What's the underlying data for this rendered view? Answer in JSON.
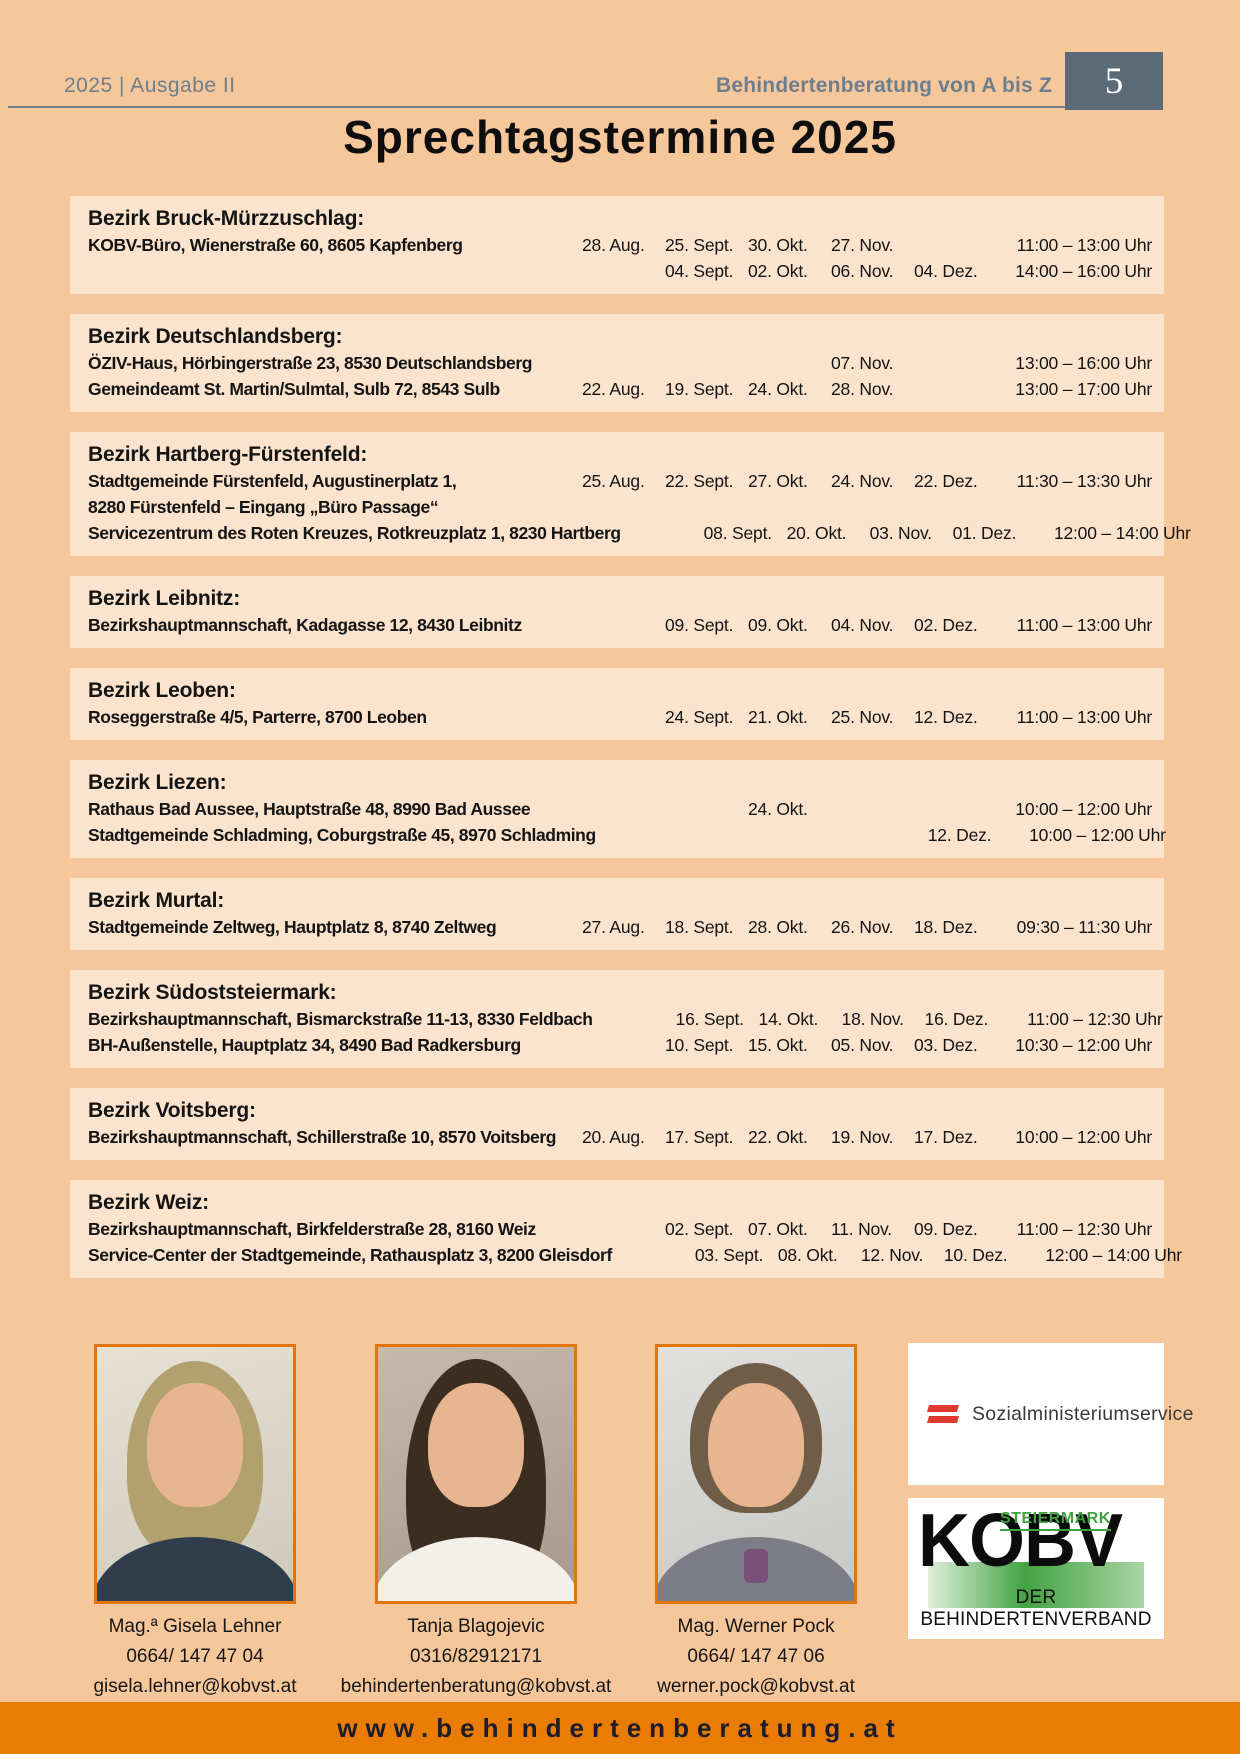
{
  "page": {
    "issue": "2025 | Ausgabe II",
    "brand": "Behindertenberatung von A bis Z",
    "page_number": "5",
    "title": "Sprechtagstermine 2025"
  },
  "colors": {
    "page_bg": "#f7c79c",
    "section_bg": "#fbe3cd",
    "header_slate": "#6d7e8c",
    "pagenum_box": "#5a6a76",
    "accent_orange": "#e97c04",
    "photo_border": "#e0760b",
    "kobv_green": "#3fa23f",
    "flag_red": "#dd3b2f"
  },
  "sections": [
    {
      "title": "Bezirk Bruck-Mürzzuschlag:",
      "rows": [
        {
          "location": "KOBV-Büro, Wienerstraße 60, 8605 Kapfenberg",
          "dates": [
            "28. Aug.",
            "25. Sept.",
            "30. Okt.",
            "27. Nov.",
            ""
          ],
          "time": "11:00 – 13:00 Uhr"
        },
        {
          "location": "",
          "dates": [
            "",
            "04. Sept.",
            "02. Okt.",
            "06. Nov.",
            "04. Dez."
          ],
          "time": "14:00 – 16:00 Uhr"
        }
      ]
    },
    {
      "title": "Bezirk Deutschlandsberg:",
      "rows": [
        {
          "location": "ÖZIV-Haus, Hörbingerstraße 23, 8530 Deutschlandsberg",
          "dates": [
            "",
            "",
            "",
            "07. Nov.",
            ""
          ],
          "time": "13:00 – 16:00 Uhr"
        },
        {
          "location": "Gemeindeamt St. Martin/Sulmtal, Sulb 72, 8543 Sulb",
          "dates": [
            "22. Aug.",
            "19. Sept.",
            "24. Okt.",
            "28. Nov.",
            ""
          ],
          "time": "13:00 – 17:00 Uhr"
        }
      ]
    },
    {
      "title": "Bezirk Hartberg-Fürstenfeld:",
      "rows": [
        {
          "location": "Stadtgemeinde Fürstenfeld, Augustinerplatz 1,",
          "dates": [
            "25. Aug.",
            "22. Sept.",
            "27. Okt.",
            "24. Nov.",
            "22. Dez."
          ],
          "time": "11:30 – 13:30 Uhr"
        },
        {
          "location": "8280 Fürstenfeld – Eingang „Büro Passage“",
          "dates": [
            "",
            "",
            "",
            "",
            ""
          ],
          "time": ""
        },
        {
          "location": "Servicezentrum des Roten Kreuzes, Rotkreuzplatz 1, 8230 Hartberg",
          "dates": [
            "",
            "08. Sept.",
            "20. Okt.",
            "03. Nov.",
            "01. Dez."
          ],
          "time": "12:00 – 14:00 Uhr"
        }
      ]
    },
    {
      "title": "Bezirk Leibnitz:",
      "rows": [
        {
          "location": "Bezirkshauptmannschaft, Kadagasse 12, 8430 Leibnitz",
          "dates": [
            "",
            "09. Sept.",
            "09. Okt.",
            "04. Nov.",
            "02. Dez."
          ],
          "time": "11:00 – 13:00 Uhr"
        }
      ]
    },
    {
      "title": "Bezirk Leoben:",
      "rows": [
        {
          "location": "Roseggerstraße 4/5, Parterre, 8700 Leoben",
          "dates": [
            "",
            "24. Sept.",
            "21. Okt.",
            "25. Nov.",
            "12. Dez."
          ],
          "time": "11:00 – 13:00 Uhr"
        }
      ]
    },
    {
      "title": "Bezirk Liezen:",
      "rows": [
        {
          "location": "Rathaus Bad Aussee, Hauptstraße 48, 8990 Bad Aussee",
          "dates": [
            "",
            "",
            "24. Okt.",
            "",
            ""
          ],
          "time": "10:00 – 12:00 Uhr"
        },
        {
          "location": "Stadtgemeinde Schladming, Coburgstraße 45, 8970 Schladming",
          "dates": [
            "",
            "",
            "",
            "",
            "12. Dez."
          ],
          "time": "10:00 – 12:00 Uhr"
        }
      ]
    },
    {
      "title": "Bezirk Murtal:",
      "rows": [
        {
          "location": "Stadtgemeinde Zeltweg, Hauptplatz 8, 8740 Zeltweg",
          "dates": [
            "27. Aug.",
            "18. Sept.",
            "28. Okt.",
            "26. Nov.",
            "18. Dez."
          ],
          "time": "09:30 – 11:30 Uhr"
        }
      ]
    },
    {
      "title": "Bezirk Südoststeiermark:",
      "rows": [
        {
          "location": "Bezirkshauptmannschaft, Bismarckstraße 11-13, 8330 Feldbach",
          "dates": [
            "",
            "16. Sept.",
            "14. Okt.",
            "18. Nov.",
            "16. Dez."
          ],
          "time": "11:00 – 12:30 Uhr"
        },
        {
          "location": "BH-Außenstelle, Hauptplatz 34, 8490 Bad Radkersburg",
          "dates": [
            "",
            "10. Sept.",
            "15. Okt.",
            "05. Nov.",
            "03. Dez."
          ],
          "time": "10:30 – 12:00 Uhr"
        }
      ]
    },
    {
      "title": "Bezirk Voitsberg:",
      "rows": [
        {
          "location": "Bezirkshauptmannschaft, Schillerstraße 10, 8570 Voitsberg",
          "dates": [
            "20. Aug.",
            "17. Sept.",
            "22. Okt.",
            "19. Nov.",
            "17. Dez."
          ],
          "time": "10:00 – 12:00 Uhr"
        }
      ]
    },
    {
      "title": "Bezirk Weiz:",
      "rows": [
        {
          "location": "Bezirkshauptmannschaft, Birkfelderstraße 28, 8160 Weiz",
          "dates": [
            "",
            "02. Sept.",
            "07. Okt.",
            "11. Nov.",
            "09. Dez."
          ],
          "time": "11:00 – 12:30 Uhr"
        },
        {
          "location": "Service-Center der Stadtgemeinde, Rathausplatz 3, 8200 Gleisdorf",
          "dates": [
            "",
            "03. Sept.",
            "08. Okt.",
            "12. Nov.",
            "10. Dez."
          ],
          "time": "12:00 – 14:00 Uhr"
        }
      ]
    }
  ],
  "contacts": [
    {
      "name": "Mag.ª Gisela Lehner",
      "phone": "0664/ 147 47 04",
      "email": "gisela.lehner@kobvst.at"
    },
    {
      "name": "Tanja Blagojevic",
      "phone": "0316/82912171",
      "email": "behindertenberatung@kobvst.at"
    },
    {
      "name": "Mag. Werner Pock",
      "phone": "0664/ 147 47 06",
      "email": "werner.pock@kobvst.at"
    }
  ],
  "logos": {
    "sozialministerium": {
      "label": "Sozialministeriumservice"
    },
    "kobv": {
      "region": "STEIERMARK",
      "acronym": "KOBV",
      "subtitle": "DER BEHINDERTENVERBAND"
    }
  },
  "footer": {
    "url": "www.behindertenberatung.at"
  }
}
